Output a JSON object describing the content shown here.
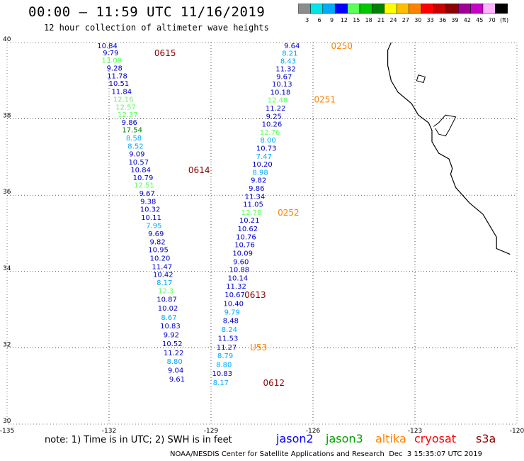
{
  "title": "00:00 – 11:59 UTC 11/16/2019",
  "subtitle": "12 hour collection of altimeter wave heights",
  "colorbar": {
    "colors": [
      "#8c8c8c",
      "#00e6e6",
      "#00aaff",
      "#0000ff",
      "#5aff5a",
      "#00c800",
      "#008200",
      "#ffff00",
      "#ffbe00",
      "#ff8200",
      "#ff0000",
      "#c80000",
      "#8c0000",
      "#a00096",
      "#c800c8",
      "#ffb4ff",
      "#000000"
    ],
    "labels": [
      "3",
      "6",
      "9",
      "12",
      "15",
      "18",
      "21",
      "24",
      "27",
      "30",
      "33",
      "36",
      "39",
      "42",
      "45",
      "70",
      "(ft)"
    ]
  },
  "axes": {
    "lon_ticks": [
      "-135",
      "-132",
      "-129",
      "-126",
      "-123",
      "-120"
    ],
    "lat_ticks": [
      "40",
      "38",
      "36",
      "34",
      "32",
      "30"
    ]
  },
  "tracks": [
    {
      "label": "0615",
      "color": "#8c0000",
      "points": [
        {
          "lat": 39.93,
          "lon": -132.05,
          "v": "10.84",
          "c": "#0000c8"
        },
        {
          "lat": 39.74,
          "lon": -131.95,
          "v": "9.79",
          "c": "#0000c8"
        },
        {
          "lat": 39.54,
          "lon": -131.92,
          "v": "13.09",
          "c": "#5aff5a"
        },
        {
          "lat": 39.34,
          "lon": -131.84,
          "v": "9.28",
          "c": "#0000c8"
        },
        {
          "lat": 39.14,
          "lon": -131.76,
          "v": "11.78",
          "c": "#0000c8"
        },
        {
          "lat": 38.94,
          "lon": -131.71,
          "v": "10.51",
          "c": "#0000c8"
        },
        {
          "lat": 38.73,
          "lon": -131.63,
          "v": "11.84",
          "c": "#0000c8"
        },
        {
          "lat": 38.52,
          "lon": -131.58,
          "v": "12.16",
          "c": "#5aff5a"
        },
        {
          "lat": 38.32,
          "lon": -131.51,
          "v": "12.57",
          "c": "#5aff5a"
        },
        {
          "lat": 38.12,
          "lon": -131.45,
          "v": "12.37",
          "c": "#5aff5a"
        },
        {
          "lat": 37.92,
          "lon": -131.4,
          "v": "9.86",
          "c": "#0000c8"
        },
        {
          "lat": 37.72,
          "lon": -131.32,
          "v": "17.54",
          "c": "#008200"
        },
        {
          "lat": 37.51,
          "lon": -131.27,
          "v": "8.58",
          "c": "#00aaff"
        },
        {
          "lat": 37.3,
          "lon": -131.22,
          "v": "8.52",
          "c": "#00aaff"
        },
        {
          "lat": 37.09,
          "lon": -131.18,
          "v": "9.09",
          "c": "#0000c8"
        },
        {
          "lat": 36.88,
          "lon": -131.13,
          "v": "10.57",
          "c": "#0000c8"
        },
        {
          "lat": 36.67,
          "lon": -131.07,
          "v": "10.84",
          "c": "#0000c8"
        },
        {
          "lat": 36.47,
          "lon": -131.0,
          "v": "10.79",
          "c": "#0000c8"
        },
        {
          "lat": 36.27,
          "lon": -130.97,
          "v": "12.51",
          "c": "#5aff5a"
        },
        {
          "lat": 36.06,
          "lon": -130.88,
          "v": "9.67",
          "c": "#0000c8"
        },
        {
          "lat": 35.85,
          "lon": -130.85,
          "v": "9.38",
          "c": "#0000c8"
        },
        {
          "lat": 35.64,
          "lon": -130.79,
          "v": "10.32",
          "c": "#0000c8"
        },
        {
          "lat": 35.43,
          "lon": -130.76,
          "v": "10.11",
          "c": "#0000c8"
        },
        {
          "lat": 35.21,
          "lon": -130.68,
          "v": "7.95",
          "c": "#00aaff"
        },
        {
          "lat": 35.0,
          "lon": -130.62,
          "v": "9.69",
          "c": "#0000c8"
        },
        {
          "lat": 34.79,
          "lon": -130.57,
          "v": "9.82",
          "c": "#0000c8"
        },
        {
          "lat": 34.58,
          "lon": -130.55,
          "v": "10.95",
          "c": "#0000c8"
        },
        {
          "lat": 34.36,
          "lon": -130.5,
          "v": "10.20",
          "c": "#0000c8"
        },
        {
          "lat": 34.14,
          "lon": -130.44,
          "v": "11.47",
          "c": "#0000c8"
        },
        {
          "lat": 33.93,
          "lon": -130.41,
          "v": "10.42",
          "c": "#0000c8"
        },
        {
          "lat": 33.72,
          "lon": -130.37,
          "v": "8.17",
          "c": "#00aaff"
        },
        {
          "lat": 33.5,
          "lon": -130.33,
          "v": "12.3",
          "c": "#5aff5a"
        },
        {
          "lat": 33.28,
          "lon": -130.3,
          "v": "10.87",
          "c": "#0000c8"
        },
        {
          "lat": 33.05,
          "lon": -130.27,
          "v": "10.02",
          "c": "#0000c8"
        },
        {
          "lat": 32.81,
          "lon": -130.24,
          "v": "8.67",
          "c": "#00aaff"
        },
        {
          "lat": 32.58,
          "lon": -130.2,
          "v": "10.83",
          "c": "#0000c8"
        },
        {
          "lat": 32.35,
          "lon": -130.17,
          "v": "9.92",
          "c": "#0000c8"
        },
        {
          "lat": 32.12,
          "lon": -130.14,
          "v": "10.52",
          "c": "#0000c8"
        },
        {
          "lat": 31.88,
          "lon": -130.1,
          "v": "11.22",
          "c": "#0000c8"
        },
        {
          "lat": 31.65,
          "lon": -130.07,
          "v": "8.80",
          "c": "#00aaff"
        },
        {
          "lat": 31.42,
          "lon": -130.04,
          "v": "9.04",
          "c": "#0000c8"
        },
        {
          "lat": 31.19,
          "lon": -130.0,
          "v": "9.61",
          "c": "#0000c8"
        }
      ]
    },
    {
      "label": "0250",
      "color": "#ff8200",
      "points": [
        {
          "lat": 39.93,
          "lon": -126.62,
          "v": "9.64",
          "c": "#0000c8"
        },
        {
          "lat": 39.73,
          "lon": -126.68,
          "v": "8.21",
          "c": "#00aaff"
        },
        {
          "lat": 39.53,
          "lon": -126.73,
          "v": "8.43",
          "c": "#00aaff"
        },
        {
          "lat": 39.32,
          "lon": -126.8,
          "v": "11.32",
          "c": "#0000c8"
        },
        {
          "lat": 39.12,
          "lon": -126.85,
          "v": "9.67",
          "c": "#0000c8"
        },
        {
          "lat": 38.92,
          "lon": -126.91,
          "v": "10.13",
          "c": "#0000c8"
        },
        {
          "lat": 38.71,
          "lon": -126.96,
          "v": "10.18",
          "c": "#0000c8"
        },
        {
          "lat": 38.5,
          "lon": -127.04,
          "v": "12.48",
          "c": "#5aff5a"
        },
        {
          "lat": 38.29,
          "lon": -127.1,
          "v": "11.22",
          "c": "#0000c8"
        },
        {
          "lat": 38.08,
          "lon": -127.15,
          "v": "9.25",
          "c": "#0000c8"
        },
        {
          "lat": 37.87,
          "lon": -127.21,
          "v": "10.26",
          "c": "#0000c8"
        },
        {
          "lat": 37.66,
          "lon": -127.27,
          "v": "12.76",
          "c": "#5aff5a"
        },
        {
          "lat": 37.45,
          "lon": -127.32,
          "v": "8.00",
          "c": "#00aaff"
        },
        {
          "lat": 37.24,
          "lon": -127.37,
          "v": "10.73",
          "c": "#0000c8"
        },
        {
          "lat": 37.03,
          "lon": -127.44,
          "v": "7.47",
          "c": "#00aaff"
        },
        {
          "lat": 36.82,
          "lon": -127.49,
          "v": "10.20",
          "c": "#0000c8"
        },
        {
          "lat": 36.61,
          "lon": -127.55,
          "v": "8.98",
          "c": "#00aaff"
        },
        {
          "lat": 36.4,
          "lon": -127.6,
          "v": "9.82",
          "c": "#0000c8"
        },
        {
          "lat": 36.19,
          "lon": -127.66,
          "v": "9.86",
          "c": "#0000c8"
        },
        {
          "lat": 35.98,
          "lon": -127.71,
          "v": "11.34",
          "c": "#0000c8"
        },
        {
          "lat": 35.77,
          "lon": -127.76,
          "v": "11.05",
          "c": "#0000c8"
        },
        {
          "lat": 35.56,
          "lon": -127.81,
          "v": "12.78",
          "c": "#5aff5a"
        },
        {
          "lat": 35.35,
          "lon": -127.87,
          "v": "10.21",
          "c": "#0000c8"
        },
        {
          "lat": 35.13,
          "lon": -127.92,
          "v": "10.62",
          "c": "#0000c8"
        },
        {
          "lat": 34.92,
          "lon": -127.97,
          "v": "10.76",
          "c": "#0000c8"
        },
        {
          "lat": 34.71,
          "lon": -128.01,
          "v": "10.76",
          "c": "#0000c8"
        },
        {
          "lat": 34.49,
          "lon": -128.07,
          "v": "10.09",
          "c": "#0000c8"
        },
        {
          "lat": 34.27,
          "lon": -128.12,
          "v": "9.60",
          "c": "#0000c8"
        },
        {
          "lat": 34.06,
          "lon": -128.17,
          "v": "10.88",
          "c": "#0000c8"
        },
        {
          "lat": 33.84,
          "lon": -128.21,
          "v": "10.14",
          "c": "#0000c8"
        },
        {
          "lat": 33.62,
          "lon": -128.26,
          "v": "11.32",
          "c": "#0000c8"
        },
        {
          "lat": 33.4,
          "lon": -128.3,
          "v": "10.67",
          "c": "#0000c8"
        },
        {
          "lat": 33.17,
          "lon": -128.34,
          "v": "10.40",
          "c": "#0000c8"
        },
        {
          "lat": 32.95,
          "lon": -128.38,
          "v": "9.79",
          "c": "#00aaff"
        },
        {
          "lat": 32.72,
          "lon": -128.42,
          "v": "8.48",
          "c": "#0000c8"
        },
        {
          "lat": 32.49,
          "lon": -128.46,
          "v": "8.24",
          "c": "#00aaff"
        },
        {
          "lat": 32.26,
          "lon": -128.5,
          "v": "11.53",
          "c": "#0000c8"
        },
        {
          "lat": 32.03,
          "lon": -128.54,
          "v": "11.27",
          "c": "#0000c8"
        },
        {
          "lat": 31.8,
          "lon": -128.58,
          "v": "8.79",
          "c": "#00aaff"
        },
        {
          "lat": 31.57,
          "lon": -128.62,
          "v": "8.80",
          "c": "#00aaff"
        },
        {
          "lat": 31.34,
          "lon": -128.67,
          "v": "10.83",
          "c": "#0000c8"
        },
        {
          "lat": 31.1,
          "lon": -128.71,
          "v": "8.17",
          "c": "#00aaff"
        }
      ]
    }
  ],
  "track_labels": [
    {
      "text": "0615",
      "lat": 39.74,
      "lon": -130.35,
      "c": "#8c0000"
    },
    {
      "text": "0250",
      "lat": 39.93,
      "lon": -125.15,
      "c": "#ff8200"
    },
    {
      "text": "0251",
      "lat": 38.52,
      "lon": -125.65,
      "c": "#ff8200"
    },
    {
      "text": "0614",
      "lat": 36.67,
      "lon": -129.35,
      "c": "#8c0000"
    },
    {
      "text": "0252",
      "lat": 35.56,
      "lon": -126.72,
      "c": "#ff8200"
    },
    {
      "text": "0613",
      "lat": 33.4,
      "lon": -127.7,
      "c": "#8c0000"
    },
    {
      "text": "U53",
      "lat": 32.03,
      "lon": -127.6,
      "c": "#ff8200"
    },
    {
      "text": "0612",
      "lat": 31.1,
      "lon": -127.15,
      "c": "#8c0000"
    }
  ],
  "note": "note: 1) Time is in UTC; 2) SWH is in feet",
  "legend": [
    {
      "name": "jason2",
      "color": "#0000ff"
    },
    {
      "name": "jason3",
      "color": "#00a000"
    },
    {
      "name": "altika",
      "color": "#ff8200"
    },
    {
      "name": "cryosat",
      "color": "#ff0000"
    },
    {
      "name": "s3a",
      "color": "#8c0000"
    }
  ],
  "footer": "NOAA/NESDIS Center for Satellite Applications and Research  Dec  3 15:35:07 UTC 2019"
}
